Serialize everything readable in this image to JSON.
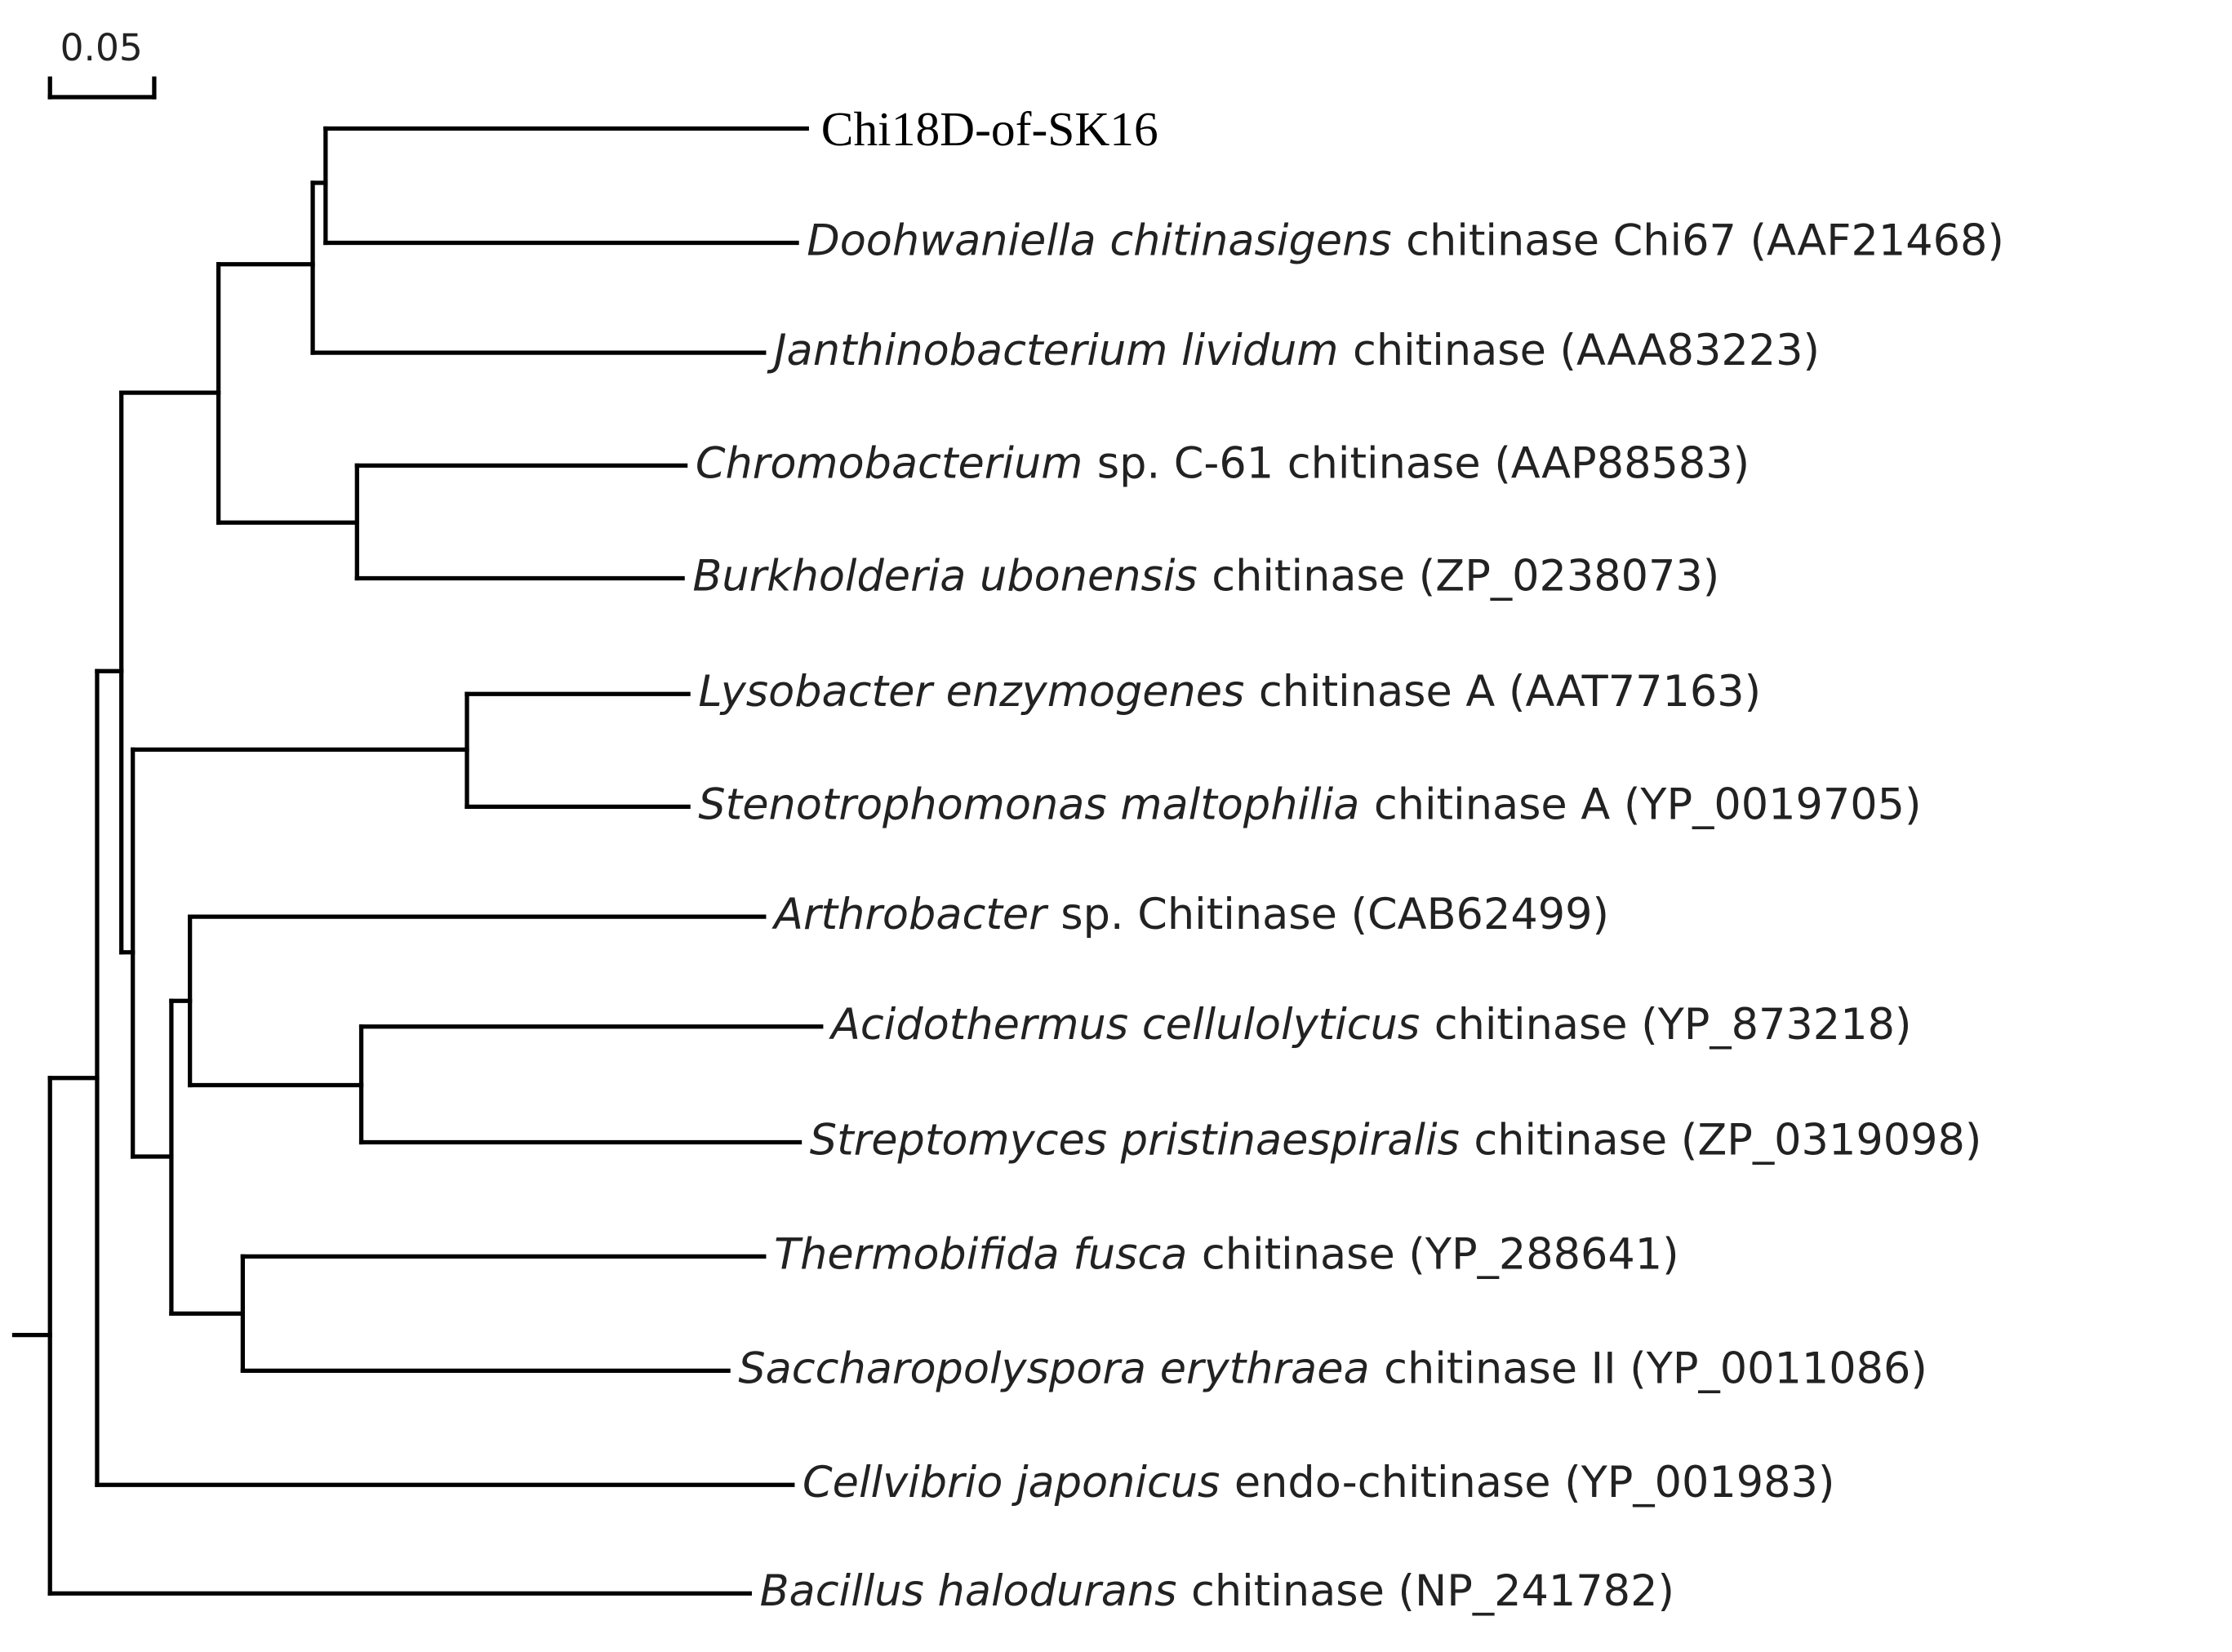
{
  "scale_bar": {
    "label": "0.05"
  },
  "leaves": [
    {
      "label": "Chi18D-of-SK16"
    },
    {
      "species": "Doohwaniella chitinasigens",
      "description": "chitinase Chi67 (AAF21468)"
    },
    {
      "species": "Janthinobacterium lividum",
      "description": "chitinase (AAA83223)"
    },
    {
      "species": "Chromobacterium",
      "description": "sp. C-61 chitinase (AAP88583)"
    },
    {
      "species": "Burkholderia ubonensis",
      "description": "chitinase (ZP_0238073)"
    },
    {
      "species": "Lysobacter enzymogenes",
      "description": "chitinase A (AAT77163)"
    },
    {
      "species": "Stenotrophomonas maltophilia",
      "description": "chitinase A (YP_0019705)"
    },
    {
      "species": "Arthrobacter",
      "description": "sp. Chitinase (CAB62499)"
    },
    {
      "species": "Acidothermus cellulolyticus",
      "description": "chitinase (YP_873218)"
    },
    {
      "species": "Streptomyces pristinaespiralis",
      "description": "chitinase (ZP_0319098)"
    },
    {
      "species": "Thermobifida fusca",
      "description": "chitinase (YP_288641)"
    },
    {
      "species": "Saccharopolyspora erythraea",
      "description": "chitinase II (YP_0011086)"
    },
    {
      "species": "Cellvibrio japonicus",
      "description": "endo-chitinase (YP_001983)"
    },
    {
      "species": "Bacillus halodurans",
      "description": "chitinase (NP_241782)"
    }
  ]
}
